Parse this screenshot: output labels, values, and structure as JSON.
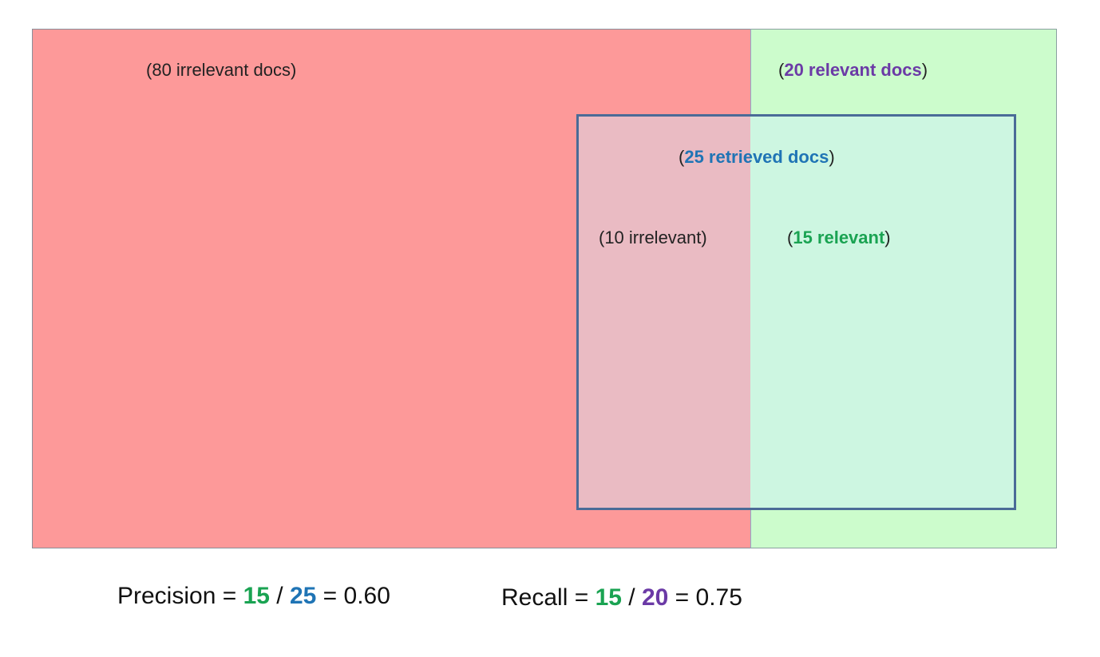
{
  "regions": {
    "irrelevant_label_open": "(",
    "irrelevant_label": "80 irrelevant docs",
    "irrelevant_label_close": ")",
    "relevant_label_open": "(",
    "relevant_label": "20 relevant docs",
    "relevant_label_close": ")",
    "retrieved_label_open": "(",
    "retrieved_label": "25 retrieved docs",
    "retrieved_label_close": ")",
    "retrieved_irrelevant_label": "(10 irrelevant)",
    "retrieved_relevant_open": "(",
    "retrieved_relevant_label": "15 relevant",
    "retrieved_relevant_close": ")"
  },
  "precision": {
    "prefix": "Precision = ",
    "numerator": "15",
    "separator": " / ",
    "denominator": "25",
    "result": " = 0.60"
  },
  "recall": {
    "prefix": "Recall = ",
    "numerator": "15",
    "separator": " / ",
    "denominator": "20",
    "result": " = 0.75"
  },
  "colors": {
    "irrelevant_fill": "#fd9999",
    "relevant_fill": "#ccfccc",
    "retrieved_border": "#4a6b97",
    "green_text": "#1aa352",
    "blue_text": "#1f74b5",
    "purple_text": "#6b3aa6"
  }
}
